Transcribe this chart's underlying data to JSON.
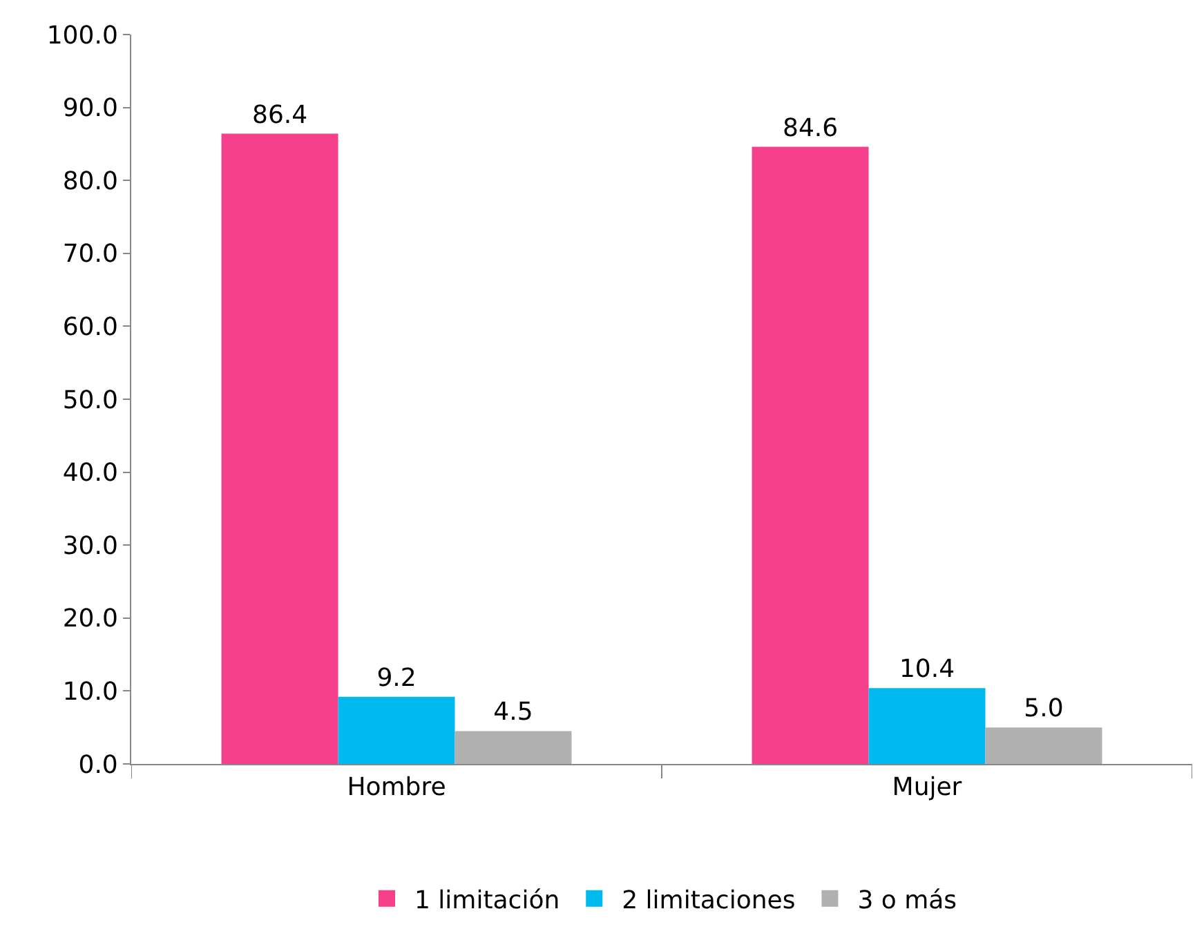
{
  "chart_data": {
    "type": "bar",
    "categories": [
      "Hombre",
      "Mujer"
    ],
    "series": [
      {
        "name": "1 limitación",
        "color": "#f53f8a",
        "values": [
          86.4,
          84.6
        ],
        "value_labels": [
          "86.4",
          "84.6"
        ]
      },
      {
        "name": "2 limitaciones",
        "color": "#00b9ee",
        "values": [
          9.2,
          10.4
        ],
        "value_labels": [
          "9.2",
          "10.4"
        ]
      },
      {
        "name": "3 o más",
        "color": "#b0b0b0",
        "values": [
          4.5,
          5.0
        ],
        "value_labels": [
          "4.5",
          "5.0"
        ]
      }
    ],
    "ylim": [
      0,
      100
    ],
    "yticks": [
      {
        "value": 0,
        "label": "0.0"
      },
      {
        "value": 10,
        "label": "10.0"
      },
      {
        "value": 20,
        "label": "20.0"
      },
      {
        "value": 30,
        "label": "30.0"
      },
      {
        "value": 40,
        "label": "40.0"
      },
      {
        "value": 50,
        "label": "50.0"
      },
      {
        "value": 60,
        "label": "60.0"
      },
      {
        "value": 70,
        "label": "70.0"
      },
      {
        "value": 80,
        "label": "80.0"
      },
      {
        "value": 90,
        "label": "90.0"
      },
      {
        "value": 100,
        "label": "100.0"
      }
    ],
    "legend": "bottom"
  }
}
